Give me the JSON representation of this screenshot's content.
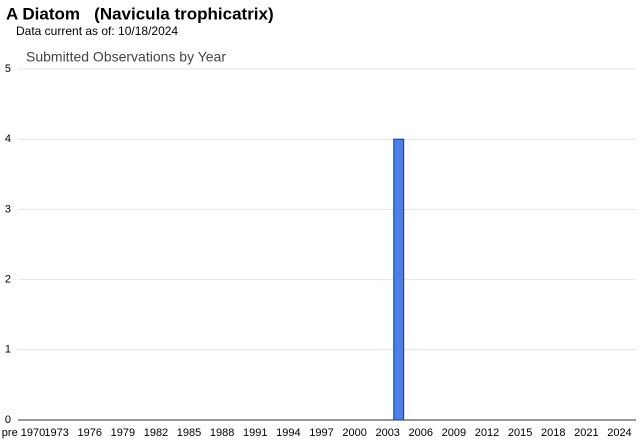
{
  "chart_data": {
    "type": "bar",
    "title": "A Diatom   (Navicula trophicatrix)",
    "subtitle": "Data current as of: 10/18/2024",
    "chart_title": "Submitted Observations by Year",
    "categories": [
      "pre 1970",
      null,
      null,
      "1973",
      null,
      null,
      "1976",
      null,
      null,
      "1979",
      null,
      null,
      "1982",
      null,
      null,
      "1985",
      null,
      null,
      "1988",
      null,
      null,
      "1991",
      null,
      null,
      "1994",
      null,
      null,
      "1997",
      null,
      null,
      "2000",
      null,
      null,
      "2003",
      null,
      null,
      "2006",
      null,
      null,
      "2009",
      null,
      null,
      "2012",
      null,
      null,
      "2015",
      null,
      null,
      "2018",
      null,
      null,
      "2021",
      null,
      null,
      "2024",
      null
    ],
    "values": [
      0,
      0,
      0,
      0,
      0,
      0,
      0,
      0,
      0,
      0,
      0,
      0,
      0,
      0,
      0,
      0,
      0,
      0,
      0,
      0,
      0,
      0,
      0,
      0,
      0,
      0,
      0,
      0,
      0,
      0,
      0,
      0,
      0,
      0,
      4,
      0,
      0,
      0,
      0,
      0,
      0,
      0,
      0,
      0,
      0,
      0,
      0,
      0,
      0,
      0,
      0,
      0,
      0,
      0,
      0,
      0
    ],
    "color": "#4a80e8",
    "ylim": [
      0,
      5
    ],
    "yticks": [
      0,
      1,
      2,
      3,
      4,
      5
    ],
    "grid": true
  }
}
